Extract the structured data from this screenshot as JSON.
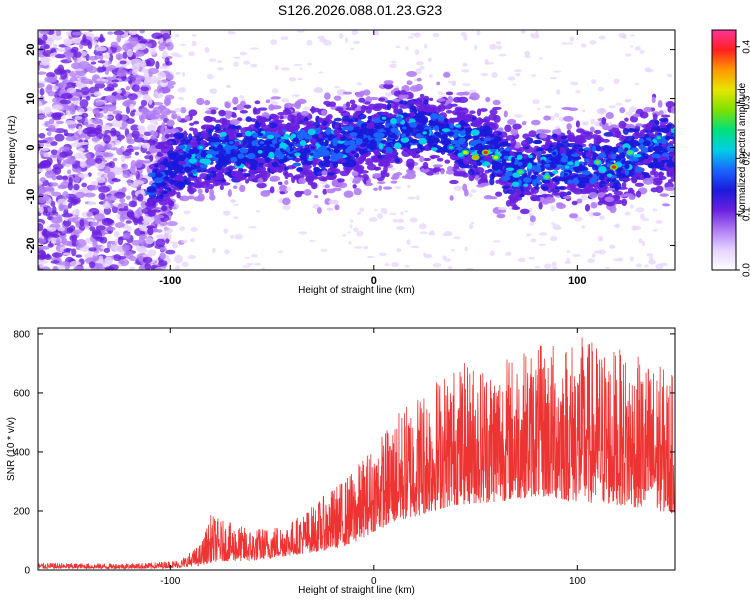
{
  "page": {
    "title": "S126.2026.088.01.23.G23"
  },
  "colors": {
    "snr_line": "#ee3333",
    "colormap": [
      "#ffffff",
      "#e6d3ff",
      "#b07cf5",
      "#6a1fe0",
      "#1a1adb",
      "#1a66ff",
      "#00cfe6",
      "#00e07a",
      "#7fe000",
      "#e6e600",
      "#ff9900",
      "#ff2020",
      "#ff3399"
    ]
  },
  "chart_data": [
    {
      "type": "heatmap",
      "title": "S126.2026.088.01.23.G23",
      "xlabel": "Height of straight line (km)",
      "ylabel": "Frequency (Hz)",
      "xlim": [
        -165,
        148
      ],
      "ylim": [
        -25,
        24
      ],
      "xticks": [
        -100,
        0,
        100
      ],
      "yticks": [
        -20,
        -10,
        0,
        10,
        20
      ],
      "colorbar": {
        "label": "Normalized spectral amplitude",
        "range": [
          0.0,
          0.43
        ],
        "ticks": [
          "0.0",
          "0.1",
          "0.2",
          "0.3",
          "0.4"
        ]
      },
      "band_centerline": [
        [
          -110,
          -8
        ],
        [
          -100,
          -4
        ],
        [
          -80,
          -1
        ],
        [
          -60,
          0
        ],
        [
          -40,
          0
        ],
        [
          -20,
          0
        ],
        [
          0,
          2
        ],
        [
          20,
          4
        ],
        [
          40,
          2
        ],
        [
          60,
          -1
        ],
        [
          70,
          -5
        ],
        [
          80,
          -4
        ],
        [
          90,
          -3
        ],
        [
          100,
          -4
        ],
        [
          120,
          -3
        ],
        [
          140,
          0
        ]
      ],
      "peaks": [
        [
          -85,
          0,
          0.22
        ],
        [
          -70,
          1,
          0.18
        ],
        [
          -55,
          1,
          0.17
        ],
        [
          -30,
          0,
          0.15
        ],
        [
          -10,
          -1,
          0.16
        ],
        [
          5,
          6,
          0.2
        ],
        [
          15,
          4,
          0.19
        ],
        [
          25,
          3,
          0.21
        ],
        [
          38,
          0,
          0.24
        ],
        [
          45,
          -1,
          0.33
        ],
        [
          50,
          -2,
          0.36
        ],
        [
          55,
          -1,
          0.38
        ],
        [
          60,
          -2,
          0.34
        ],
        [
          72,
          -5,
          0.3
        ],
        [
          85,
          -6,
          0.28
        ],
        [
          95,
          -4,
          0.22
        ],
        [
          110,
          -3,
          0.27
        ],
        [
          118,
          -4,
          0.38
        ],
        [
          126,
          -1,
          0.3
        ],
        [
          140,
          2,
          0.25
        ]
      ]
    },
    {
      "type": "line",
      "xlabel": "Height of straight line (km)",
      "ylabel": "SNR (10 * v/v)",
      "xlim": [
        -165,
        148
      ],
      "ylim": [
        0,
        820
      ],
      "xticks": [
        -100,
        0,
        100
      ],
      "yticks": [
        0,
        200,
        400,
        600,
        800
      ],
      "envelope": {
        "x": [
          -165,
          -130,
          -110,
          -95,
          -85,
          -80,
          -75,
          -60,
          -50,
          -40,
          -30,
          -20,
          -10,
          0,
          10,
          20,
          30,
          40,
          60,
          80,
          100,
          120,
          140,
          148
        ],
        "base": [
          5,
          5,
          5,
          8,
          15,
          25,
          30,
          30,
          40,
          50,
          60,
          70,
          90,
          130,
          160,
          180,
          200,
          220,
          230,
          250,
          230,
          220,
          200,
          190
        ],
        "peak": [
          25,
          22,
          25,
          35,
          90,
          190,
          170,
          140,
          150,
          170,
          220,
          280,
          340,
          430,
          520,
          600,
          660,
          700,
          720,
          760,
          800,
          750,
          700,
          660
        ]
      }
    }
  ]
}
